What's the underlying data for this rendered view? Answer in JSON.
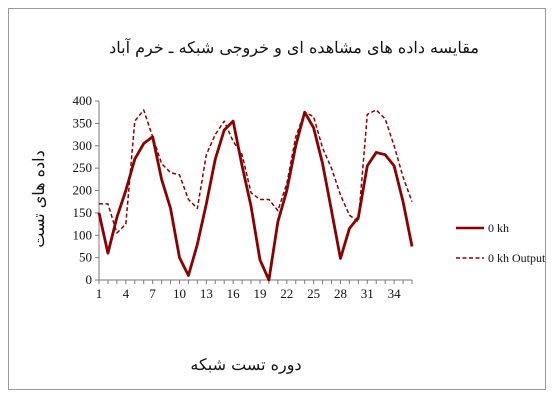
{
  "chart_data": {
    "type": "line",
    "title": "مقایسه داده های مشاهده ای و خروجی شبکه ـ خرم آباد",
    "xlabel": "دوره تست شبکه",
    "ylabel": "داده های تست",
    "ylim": [
      0,
      400
    ],
    "yticks": [
      0,
      50,
      100,
      150,
      200,
      250,
      300,
      350,
      400
    ],
    "xlim": [
      1,
      36
    ],
    "xticks": [
      1,
      4,
      7,
      10,
      13,
      16,
      19,
      22,
      25,
      28,
      31,
      34
    ],
    "x": [
      1,
      2,
      3,
      4,
      5,
      6,
      7,
      8,
      9,
      10,
      11,
      12,
      13,
      14,
      15,
      16,
      17,
      18,
      19,
      20,
      21,
      22,
      23,
      24,
      25,
      26,
      27,
      28,
      29,
      30,
      31,
      32,
      33,
      34,
      35,
      36
    ],
    "grid": false,
    "legend_position": "right",
    "series": [
      {
        "name": "0 kh",
        "style": "solid",
        "color": "#8b0000",
        "values": [
          150,
          60,
          140,
          200,
          270,
          305,
          320,
          225,
          160,
          50,
          10,
          80,
          170,
          270,
          335,
          355,
          255,
          165,
          45,
          0,
          130,
          200,
          300,
          375,
          340,
          260,
          155,
          48,
          115,
          140,
          255,
          285,
          280,
          255,
          175,
          75
        ]
      },
      {
        "name": "0 kh Output",
        "style": "dashed",
        "color": "#8b0000",
        "values": [
          170,
          170,
          105,
          125,
          355,
          380,
          320,
          260,
          240,
          235,
          180,
          160,
          280,
          325,
          355,
          310,
          280,
          195,
          180,
          180,
          155,
          215,
          320,
          375,
          365,
          295,
          250,
          190,
          145,
          130,
          370,
          380,
          360,
          300,
          230,
          175
        ]
      }
    ]
  }
}
